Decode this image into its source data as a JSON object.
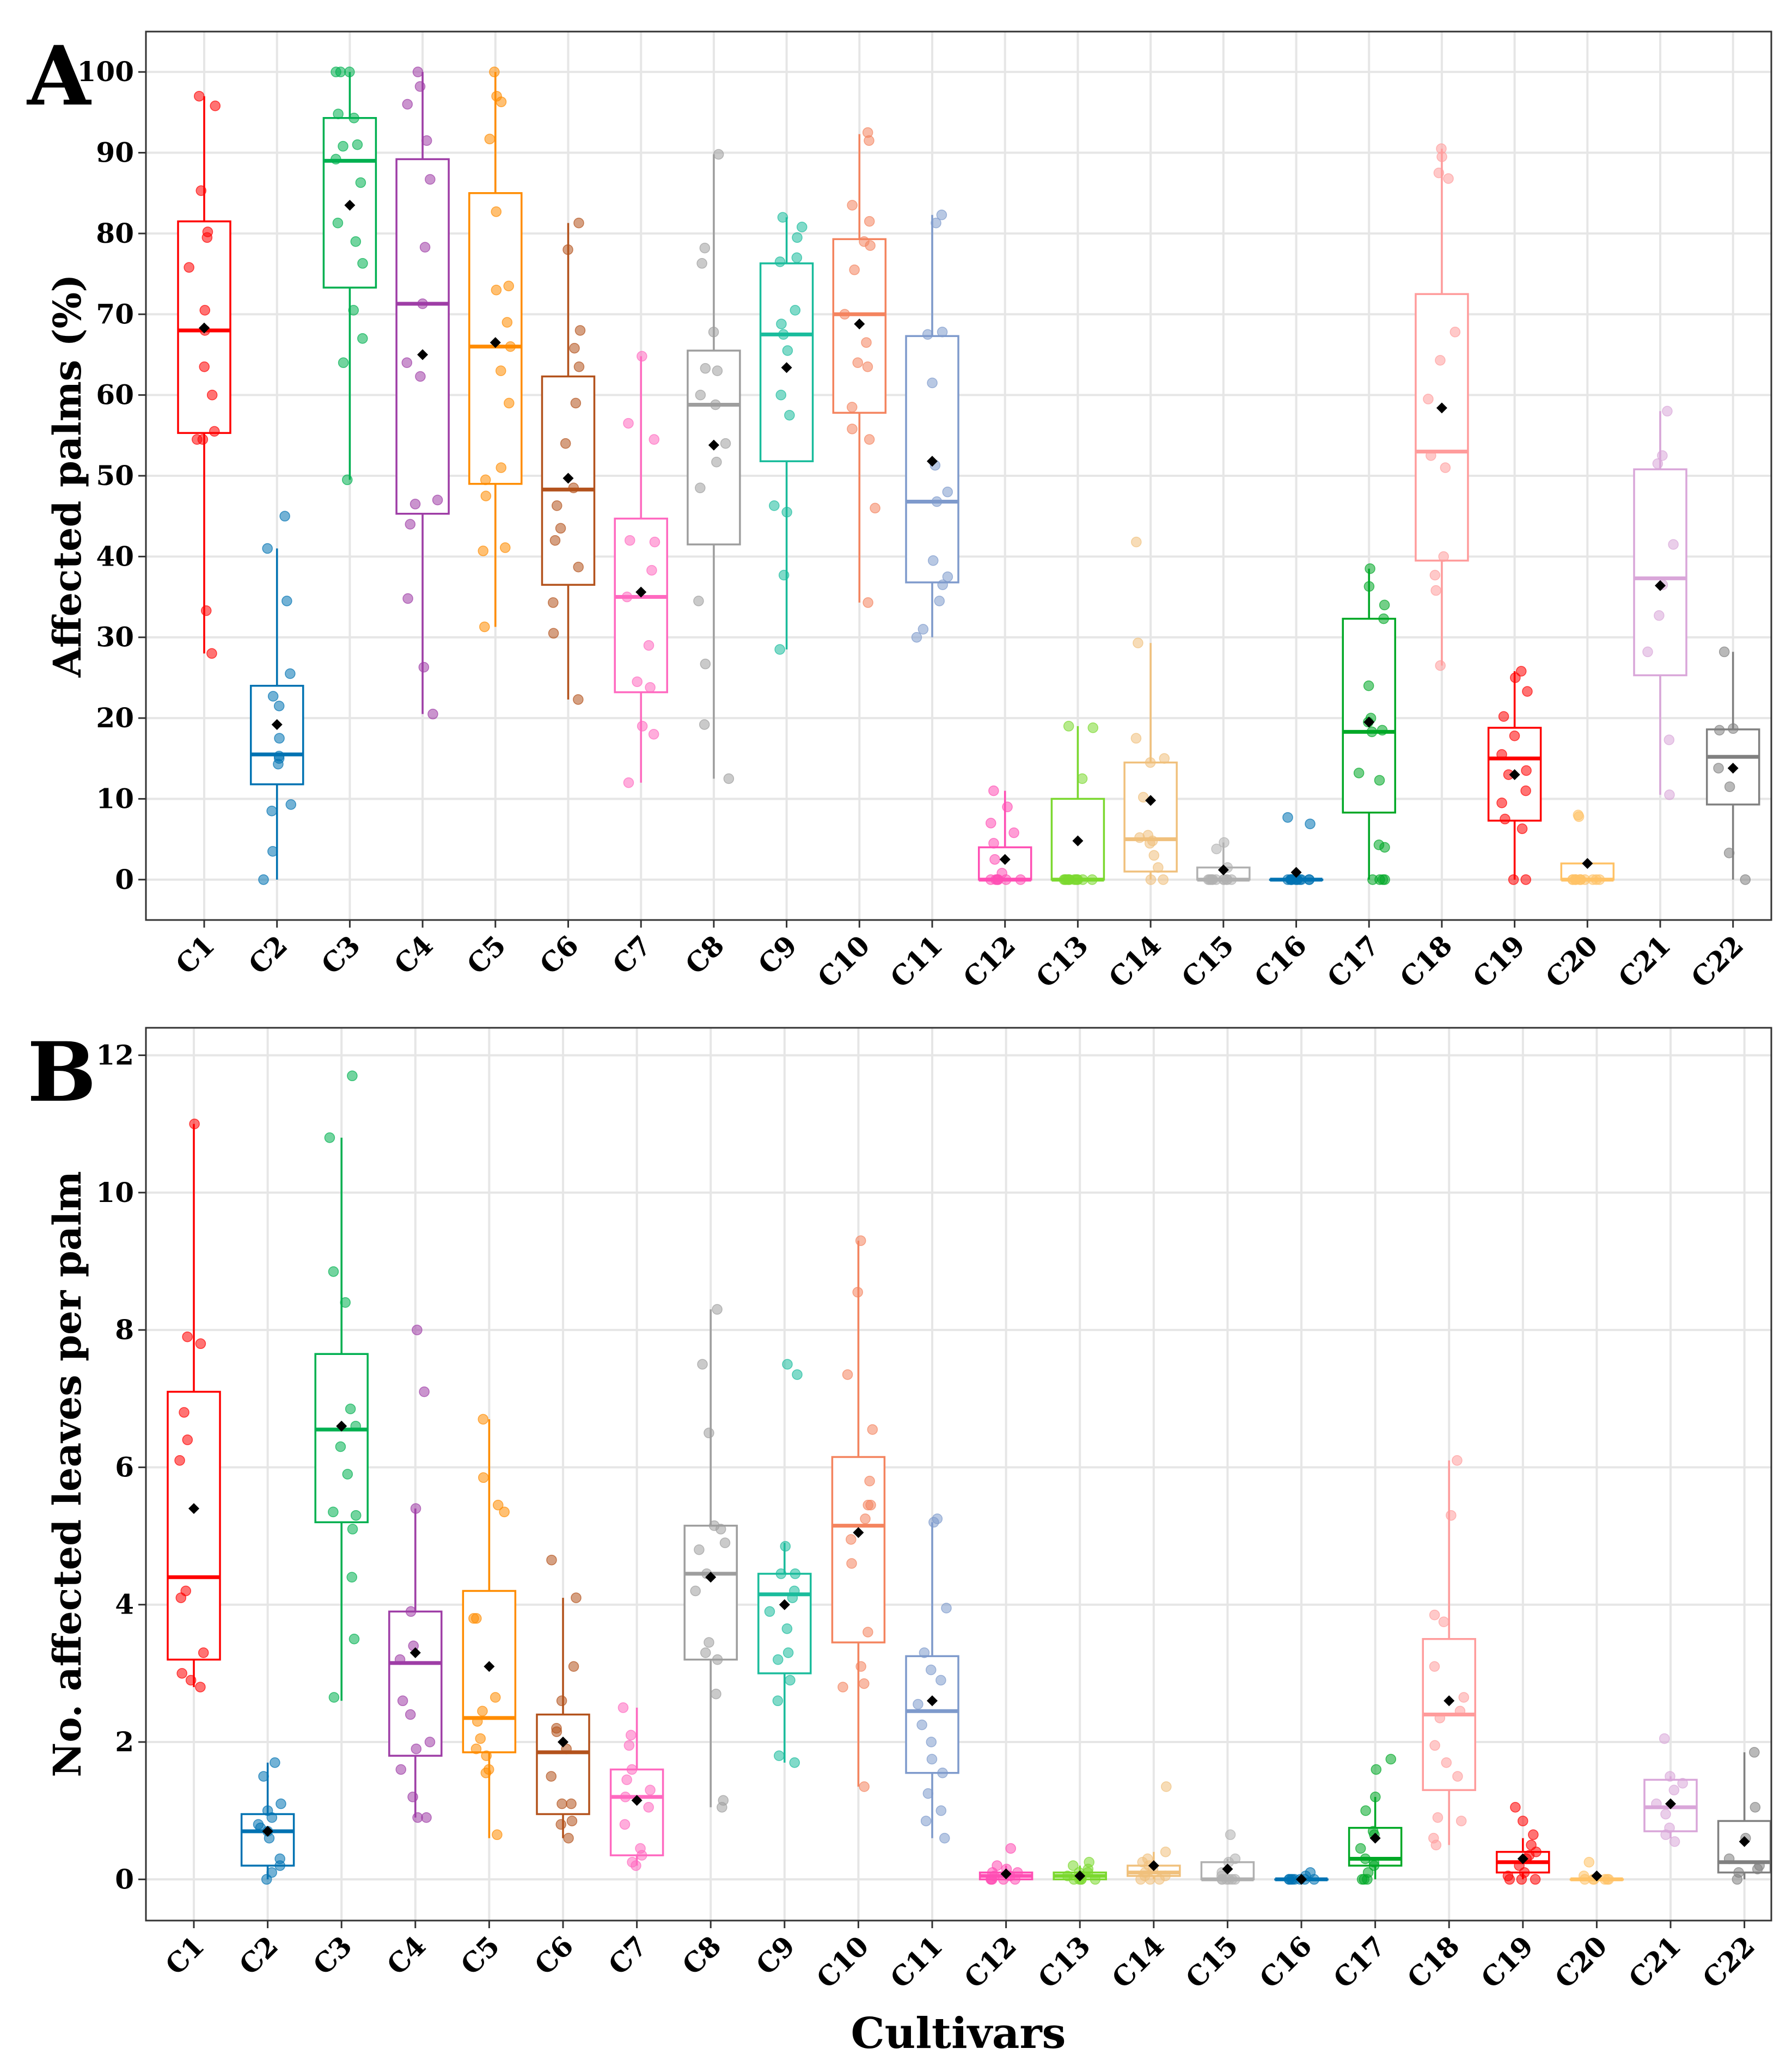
{
  "x_axis_title": "Cultivars",
  "chart_data": [
    {
      "type": "box",
      "panel_label": "A",
      "ylabel": "Affected palms (%)",
      "xlabel": "",
      "ylim": [
        -5,
        105
      ],
      "yticks": [
        0,
        10,
        20,
        30,
        40,
        50,
        60,
        70,
        80,
        90,
        100
      ],
      "grid": true,
      "categories": [
        "C1",
        "C2",
        "C3",
        "C4",
        "C5",
        "C6",
        "C7",
        "C8",
        "C9",
        "C10",
        "C11",
        "C12",
        "C13",
        "C14",
        "C15",
        "C16",
        "C17",
        "C18",
        "C19",
        "C20",
        "C21",
        "C22"
      ],
      "colors": [
        "#ff0000",
        "#0072b2",
        "#00b050",
        "#9e3da6",
        "#ff8c00",
        "#b3521c",
        "#ff69c0",
        "#9e9e9e",
        "#1abc9c",
        "#f4845f",
        "#7e9acc",
        "#ff4fb4",
        "#7bd82f",
        "#f0c07c",
        "#b0b0b0",
        "#0072b2",
        "#00a826",
        "#ff9c9c",
        "#ff0000",
        "#ffc266",
        "#d9a6d9",
        "#808080"
      ],
      "boxes": [
        {
          "min": 28,
          "q1": 55.3,
          "median": 68,
          "q3": 81.5,
          "max": 97,
          "mean": 68.3
        },
        {
          "min": 0,
          "q1": 11.8,
          "median": 15.5,
          "q3": 24,
          "max": 41,
          "mean": 19.2
        },
        {
          "min": 49.5,
          "q1": 73.3,
          "median": 89,
          "q3": 94.3,
          "max": 100,
          "mean": 83.5
        },
        {
          "min": 20.5,
          "q1": 45.3,
          "median": 71.3,
          "q3": 89.2,
          "max": 100,
          "mean": 65
        },
        {
          "min": 31.3,
          "q1": 49,
          "median": 66,
          "q3": 85,
          "max": 100,
          "mean": 66.5
        },
        {
          "min": 22.3,
          "q1": 36.5,
          "median": 48.3,
          "q3": 62.3,
          "max": 81.3,
          "mean": 49.7
        },
        {
          "min": 12,
          "q1": 23.2,
          "median": 35,
          "q3": 44.7,
          "max": 64.8,
          "mean": 35.6
        },
        {
          "min": 12.5,
          "q1": 41.5,
          "median": 58.8,
          "q3": 65.5,
          "max": 89.8,
          "mean": 53.8
        },
        {
          "min": 28.5,
          "q1": 51.8,
          "median": 67.5,
          "q3": 76.3,
          "max": 82,
          "mean": 63.4
        },
        {
          "min": 34.3,
          "q1": 57.8,
          "median": 70,
          "q3": 79.3,
          "max": 92.3,
          "mean": 68.8
        },
        {
          "min": 30,
          "q1": 36.8,
          "median": 46.8,
          "q3": 67.3,
          "max": 82.3,
          "mean": 51.8
        },
        {
          "min": 0,
          "q1": 0,
          "median": 0,
          "q3": 4,
          "max": 11,
          "mean": 2.5
        },
        {
          "min": 0,
          "q1": 0,
          "median": 0,
          "q3": 10,
          "max": 19,
          "mean": 4.8
        },
        {
          "min": 0,
          "q1": 1,
          "median": 5,
          "q3": 14.5,
          "max": 29.3,
          "mean": 9.8
        },
        {
          "min": 0,
          "q1": 0,
          "median": 0,
          "q3": 1.5,
          "max": 4.6,
          "mean": 1.2
        },
        {
          "min": 0,
          "q1": 0,
          "median": 0,
          "q3": 0,
          "max": 0,
          "mean": 0.9
        },
        {
          "min": 0,
          "q1": 8.3,
          "median": 18.3,
          "q3": 32.3,
          "max": 38.5,
          "mean": 19.5
        },
        {
          "min": 26.5,
          "q1": 39.5,
          "median": 53,
          "q3": 72.5,
          "max": 90.5,
          "mean": 58.4
        },
        {
          "min": 0,
          "q1": 7.3,
          "median": 15,
          "q3": 18.8,
          "max": 25.8,
          "mean": 13
        },
        {
          "min": 0,
          "q1": 0,
          "median": 0,
          "q3": 2,
          "max": 2,
          "mean": 2
        },
        {
          "min": 10.5,
          "q1": 25.3,
          "median": 37.3,
          "q3": 50.8,
          "max": 58,
          "mean": 36.4
        },
        {
          "min": 0,
          "q1": 9.3,
          "median": 15.2,
          "q3": 18.6,
          "max": 28.2,
          "mean": 13.8
        }
      ],
      "points": [
        [
          28,
          33.3,
          54.5,
          54.5,
          55.5,
          60,
          63.5,
          68,
          70.5,
          75.8,
          79.5,
          80.2,
          85.3,
          95.8,
          97
        ],
        [
          0,
          3.5,
          8.5,
          9.3,
          14.3,
          15,
          15.3,
          17.5,
          21.5,
          22.7,
          25.5,
          34.5,
          41,
          45
        ],
        [
          49.5,
          64,
          67,
          70.5,
          76.3,
          79,
          81.3,
          86.3,
          89.2,
          90.8,
          91,
          94.3,
          94.8,
          100,
          100,
          100
        ],
        [
          20.5,
          26.3,
          34.8,
          44,
          46.5,
          47,
          62.3,
          64,
          71.3,
          78.3,
          86.7,
          91.5,
          96,
          98.2,
          100
        ],
        [
          31.3,
          40.7,
          41.1,
          47.5,
          49.5,
          51,
          59,
          63,
          66,
          69,
          73,
          73.5,
          82.7,
          91.7,
          96.3,
          97,
          100
        ],
        [
          22.3,
          30.5,
          34.3,
          38.7,
          42,
          43.5,
          46.3,
          48.5,
          54,
          59,
          63.5,
          65.8,
          68,
          78,
          81.3
        ],
        [
          12,
          18,
          19,
          23.8,
          24.5,
          29,
          35,
          38.3,
          41.8,
          42,
          54.5,
          56.5,
          64.8
        ],
        [
          12.5,
          19.2,
          26.7,
          34.5,
          48.5,
          51.7,
          54,
          58.8,
          60,
          63,
          63.3,
          67.8,
          76.3,
          78.2,
          89.8
        ],
        [
          28.5,
          37.7,
          45.5,
          46.3,
          57.5,
          60,
          65.5,
          67.5,
          68.8,
          70.5,
          76.5,
          77,
          79.5,
          80.8,
          82
        ],
        [
          34.3,
          46,
          54.5,
          55.8,
          58.5,
          63.5,
          64,
          66.5,
          70,
          75.5,
          78.5,
          79,
          81.5,
          83.5,
          91.5,
          92.5
        ],
        [
          30,
          31,
          34.5,
          36.5,
          37.5,
          39.5,
          46.8,
          48,
          51.3,
          61.5,
          67.5,
          67.8,
          81.3,
          82.3
        ],
        [
          0,
          0,
          0,
          0,
          0,
          0,
          0,
          0.8,
          2.5,
          4.5,
          5.8,
          7,
          9,
          11
        ],
        [
          0,
          0,
          0,
          0,
          0,
          0,
          0,
          0,
          0,
          0,
          0,
          0,
          0,
          12.5,
          18.8,
          19
        ],
        [
          0,
          0,
          1.5,
          3,
          4.5,
          4.8,
          5.2,
          5.5,
          10.2,
          14.5,
          15,
          17.5,
          29.3,
          41.8
        ],
        [
          0,
          0,
          0,
          0,
          0,
          0,
          0,
          0,
          0,
          0,
          0,
          1.5,
          3.8,
          4.6
        ],
        [
          0,
          0,
          0,
          0,
          0,
          0,
          0,
          0,
          0,
          0,
          0,
          0,
          0,
          6.9,
          7.7
        ],
        [
          0,
          0,
          0,
          0,
          4,
          4.3,
          12.3,
          13.2,
          18.3,
          18.5,
          19.5,
          20,
          24,
          32.3,
          34,
          36.3,
          38.5
        ],
        [
          26.5,
          35.8,
          37.7,
          40,
          51,
          52.5,
          59.5,
          64.3,
          67.8,
          86.8,
          87.5,
          89.5,
          90.5
        ],
        [
          0,
          0,
          6.3,
          7.5,
          9.5,
          11,
          13,
          13.5,
          15.5,
          17.8,
          20.2,
          23.3,
          25,
          25.8
        ],
        [
          0,
          0,
          0,
          0,
          0,
          0,
          0,
          0,
          0,
          0,
          0,
          0,
          7.8,
          8
        ],
        [
          10.5,
          17.3,
          28.2,
          32.7,
          36.5,
          41.5,
          51.5,
          52.5,
          58
        ],
        [
          0,
          3.3,
          11.5,
          13.8,
          18.5,
          18.7,
          28.2
        ]
      ]
    },
    {
      "type": "box",
      "panel_label": "B",
      "ylabel": "No. affected leaves per palm",
      "xlabel": "Cultivars",
      "ylim": [
        -0.6,
        12.4
      ],
      "yticks": [
        0,
        2,
        4,
        6,
        8,
        10,
        12
      ],
      "grid": true,
      "categories": [
        "C1",
        "C2",
        "C3",
        "C4",
        "C5",
        "C6",
        "C7",
        "C8",
        "C9",
        "C10",
        "C11",
        "C12",
        "C13",
        "C14",
        "C15",
        "C16",
        "C17",
        "C18",
        "C19",
        "C20",
        "C21",
        "C22"
      ],
      "colors": [
        "#ff0000",
        "#0072b2",
        "#00b050",
        "#9e3da6",
        "#ff8c00",
        "#b3521c",
        "#ff69c0",
        "#9e9e9e",
        "#1abc9c",
        "#f4845f",
        "#7e9acc",
        "#ff4fb4",
        "#7bd82f",
        "#f0c07c",
        "#b0b0b0",
        "#0072b2",
        "#00a826",
        "#ff9c9c",
        "#ff0000",
        "#ffc266",
        "#d9a6d9",
        "#808080"
      ],
      "boxes": [
        {
          "min": 2.8,
          "q1": 3.2,
          "median": 4.4,
          "q3": 7.1,
          "max": 11,
          "mean": 5.4
        },
        {
          "min": 0,
          "q1": 0.2,
          "median": 0.7,
          "q3": 0.95,
          "max": 1.7,
          "mean": 0.7
        },
        {
          "min": 2.6,
          "q1": 5.2,
          "median": 6.55,
          "q3": 7.65,
          "max": 10.8,
          "mean": 6.6
        },
        {
          "min": 0.9,
          "q1": 1.8,
          "median": 3.15,
          "q3": 3.9,
          "max": 5.4,
          "mean": 3.3
        },
        {
          "min": 0.6,
          "q1": 1.85,
          "median": 2.35,
          "q3": 4.2,
          "max": 6.7,
          "mean": 3.1
        },
        {
          "min": 0.6,
          "q1": 0.95,
          "median": 1.85,
          "q3": 2.4,
          "max": 4.1,
          "mean": 2
        },
        {
          "min": 0.2,
          "q1": 0.35,
          "median": 1.2,
          "q3": 1.6,
          "max": 2.5,
          "mean": 1.15
        },
        {
          "min": 1.05,
          "q1": 3.2,
          "median": 4.45,
          "q3": 5.15,
          "max": 8.3,
          "mean": 4.4
        },
        {
          "min": 1.7,
          "q1": 3,
          "median": 4.15,
          "q3": 4.45,
          "max": 4.9,
          "mean": 4
        },
        {
          "min": 1.35,
          "q1": 3.45,
          "median": 5.15,
          "q3": 6.15,
          "max": 9.3,
          "mean": 5.05
        },
        {
          "min": 0.6,
          "q1": 1.55,
          "median": 2.45,
          "q3": 3.25,
          "max": 5.2,
          "mean": 2.6
        },
        {
          "min": 0,
          "q1": 0,
          "median": 0.05,
          "q3": 0.1,
          "max": 0.2,
          "mean": 0.08
        },
        {
          "min": 0,
          "q1": 0,
          "median": 0.05,
          "q3": 0.1,
          "max": 0.2,
          "mean": 0.05
        },
        {
          "min": 0,
          "q1": 0.05,
          "median": 0.1,
          "q3": 0.2,
          "max": 0.4,
          "mean": 0.2
        },
        {
          "min": 0,
          "q1": 0,
          "median": 0,
          "q3": 0.25,
          "max": 0.3,
          "mean": 0.15
        },
        {
          "min": 0,
          "q1": 0,
          "median": 0,
          "q3": 0,
          "max": 0,
          "mean": 0
        },
        {
          "min": 0,
          "q1": 0.2,
          "median": 0.3,
          "q3": 0.75,
          "max": 1.2,
          "mean": 0.6
        },
        {
          "min": 0.5,
          "q1": 1.3,
          "median": 2.4,
          "q3": 3.5,
          "max": 6.1,
          "mean": 2.6
        },
        {
          "min": 0,
          "q1": 0.1,
          "median": 0.25,
          "q3": 0.4,
          "max": 0.6,
          "mean": 0.3
        },
        {
          "min": 0,
          "q1": 0,
          "median": 0,
          "q3": 0,
          "max": 0,
          "mean": 0.05
        },
        {
          "min": 0.6,
          "q1": 0.7,
          "median": 1.05,
          "q3": 1.45,
          "max": 1.5,
          "mean": 1.1
        },
        {
          "min": 0,
          "q1": 0.1,
          "median": 0.25,
          "q3": 0.85,
          "max": 1.85,
          "mean": 0.55
        }
      ],
      "points": [
        [
          2.8,
          2.9,
          3,
          3.3,
          4.1,
          4.2,
          6.1,
          6.4,
          6.8,
          7.8,
          7.9,
          11
        ],
        [
          0,
          0.1,
          0.2,
          0.3,
          0.6,
          0.7,
          0.75,
          0.8,
          0.9,
          1,
          1.1,
          1.5,
          1.7
        ],
        [
          2.65,
          3.5,
          4.4,
          5.1,
          5.3,
          5.35,
          5.9,
          6.3,
          6.6,
          6.85,
          8.4,
          8.85,
          10.8,
          11.7
        ],
        [
          0.9,
          0.9,
          1.2,
          1.6,
          1.9,
          2,
          2.4,
          2.6,
          3.2,
          3.4,
          3.9,
          5.4,
          7.1,
          8
        ],
        [
          0.65,
          1.55,
          1.6,
          1.8,
          1.9,
          2.05,
          2.3,
          2.45,
          2.65,
          3.8,
          3.8,
          5.35,
          5.45,
          5.85,
          6.7
        ],
        [
          0.6,
          0.8,
          0.85,
          1.1,
          1.1,
          1.5,
          1.9,
          2.15,
          2.2,
          2.6,
          3.1,
          4.1,
          4.65
        ],
        [
          0.2,
          0.25,
          0.35,
          0.45,
          0.8,
          1.05,
          1.2,
          1.3,
          1.45,
          1.6,
          1.95,
          2.1,
          2.5
        ],
        [
          1.05,
          1.15,
          2.7,
          3.2,
          3.3,
          3.45,
          4.2,
          4.45,
          4.8,
          4.9,
          5.1,
          5.15,
          6.5,
          7.5,
          8.3
        ],
        [
          1.7,
          1.8,
          2.6,
          2.9,
          3.2,
          3.3,
          3.65,
          3.9,
          4.1,
          4.2,
          4.45,
          4.45,
          4.85,
          7.35,
          7.5
        ],
        [
          1.35,
          2.8,
          2.85,
          3.1,
          3.6,
          4.6,
          4.95,
          5.25,
          5.45,
          5.45,
          5.8,
          6.55,
          7.35,
          8.55,
          9.3
        ],
        [
          0.6,
          0.85,
          1,
          1.25,
          1.55,
          1.75,
          2,
          2.25,
          2.55,
          2.9,
          3.05,
          3.3,
          3.95,
          5.2,
          5.25
        ],
        [
          0,
          0,
          0,
          0,
          0,
          0.05,
          0.05,
          0.1,
          0.1,
          0.15,
          0.2,
          0.45
        ],
        [
          0,
          0,
          0,
          0,
          0,
          0.05,
          0.05,
          0.1,
          0.1,
          0.15,
          0.2,
          0.25
        ],
        [
          0,
          0,
          0,
          0.05,
          0.05,
          0.1,
          0.15,
          0.2,
          0.25,
          0.3,
          0.4,
          1.35
        ],
        [
          0,
          0,
          0,
          0,
          0,
          0,
          0.05,
          0.1,
          0.25,
          0.3,
          0.65
        ],
        [
          0,
          0,
          0,
          0,
          0,
          0,
          0,
          0,
          0.05,
          0.1
        ],
        [
          0,
          0,
          0,
          0.1,
          0.2,
          0.25,
          0.3,
          0.45,
          0.65,
          0.7,
          1,
          1.2,
          1.6,
          1.75
        ],
        [
          0.5,
          0.6,
          0.85,
          0.9,
          1.5,
          1.7,
          1.95,
          2.35,
          2.45,
          2.65,
          3.1,
          3.75,
          3.85,
          5.3,
          6.1
        ],
        [
          0,
          0,
          0,
          0.05,
          0.1,
          0.2,
          0.3,
          0.35,
          0.4,
          0.5,
          0.65,
          0.85,
          1.05
        ],
        [
          0,
          0,
          0,
          0,
          0,
          0,
          0.05,
          0.25
        ],
        [
          0.55,
          0.65,
          0.75,
          0.95,
          1.1,
          1.3,
          1.4,
          1.5,
          2.05
        ],
        [
          0,
          0.1,
          0.15,
          0.2,
          0.3,
          0.6,
          1.05,
          1.85
        ]
      ]
    }
  ]
}
